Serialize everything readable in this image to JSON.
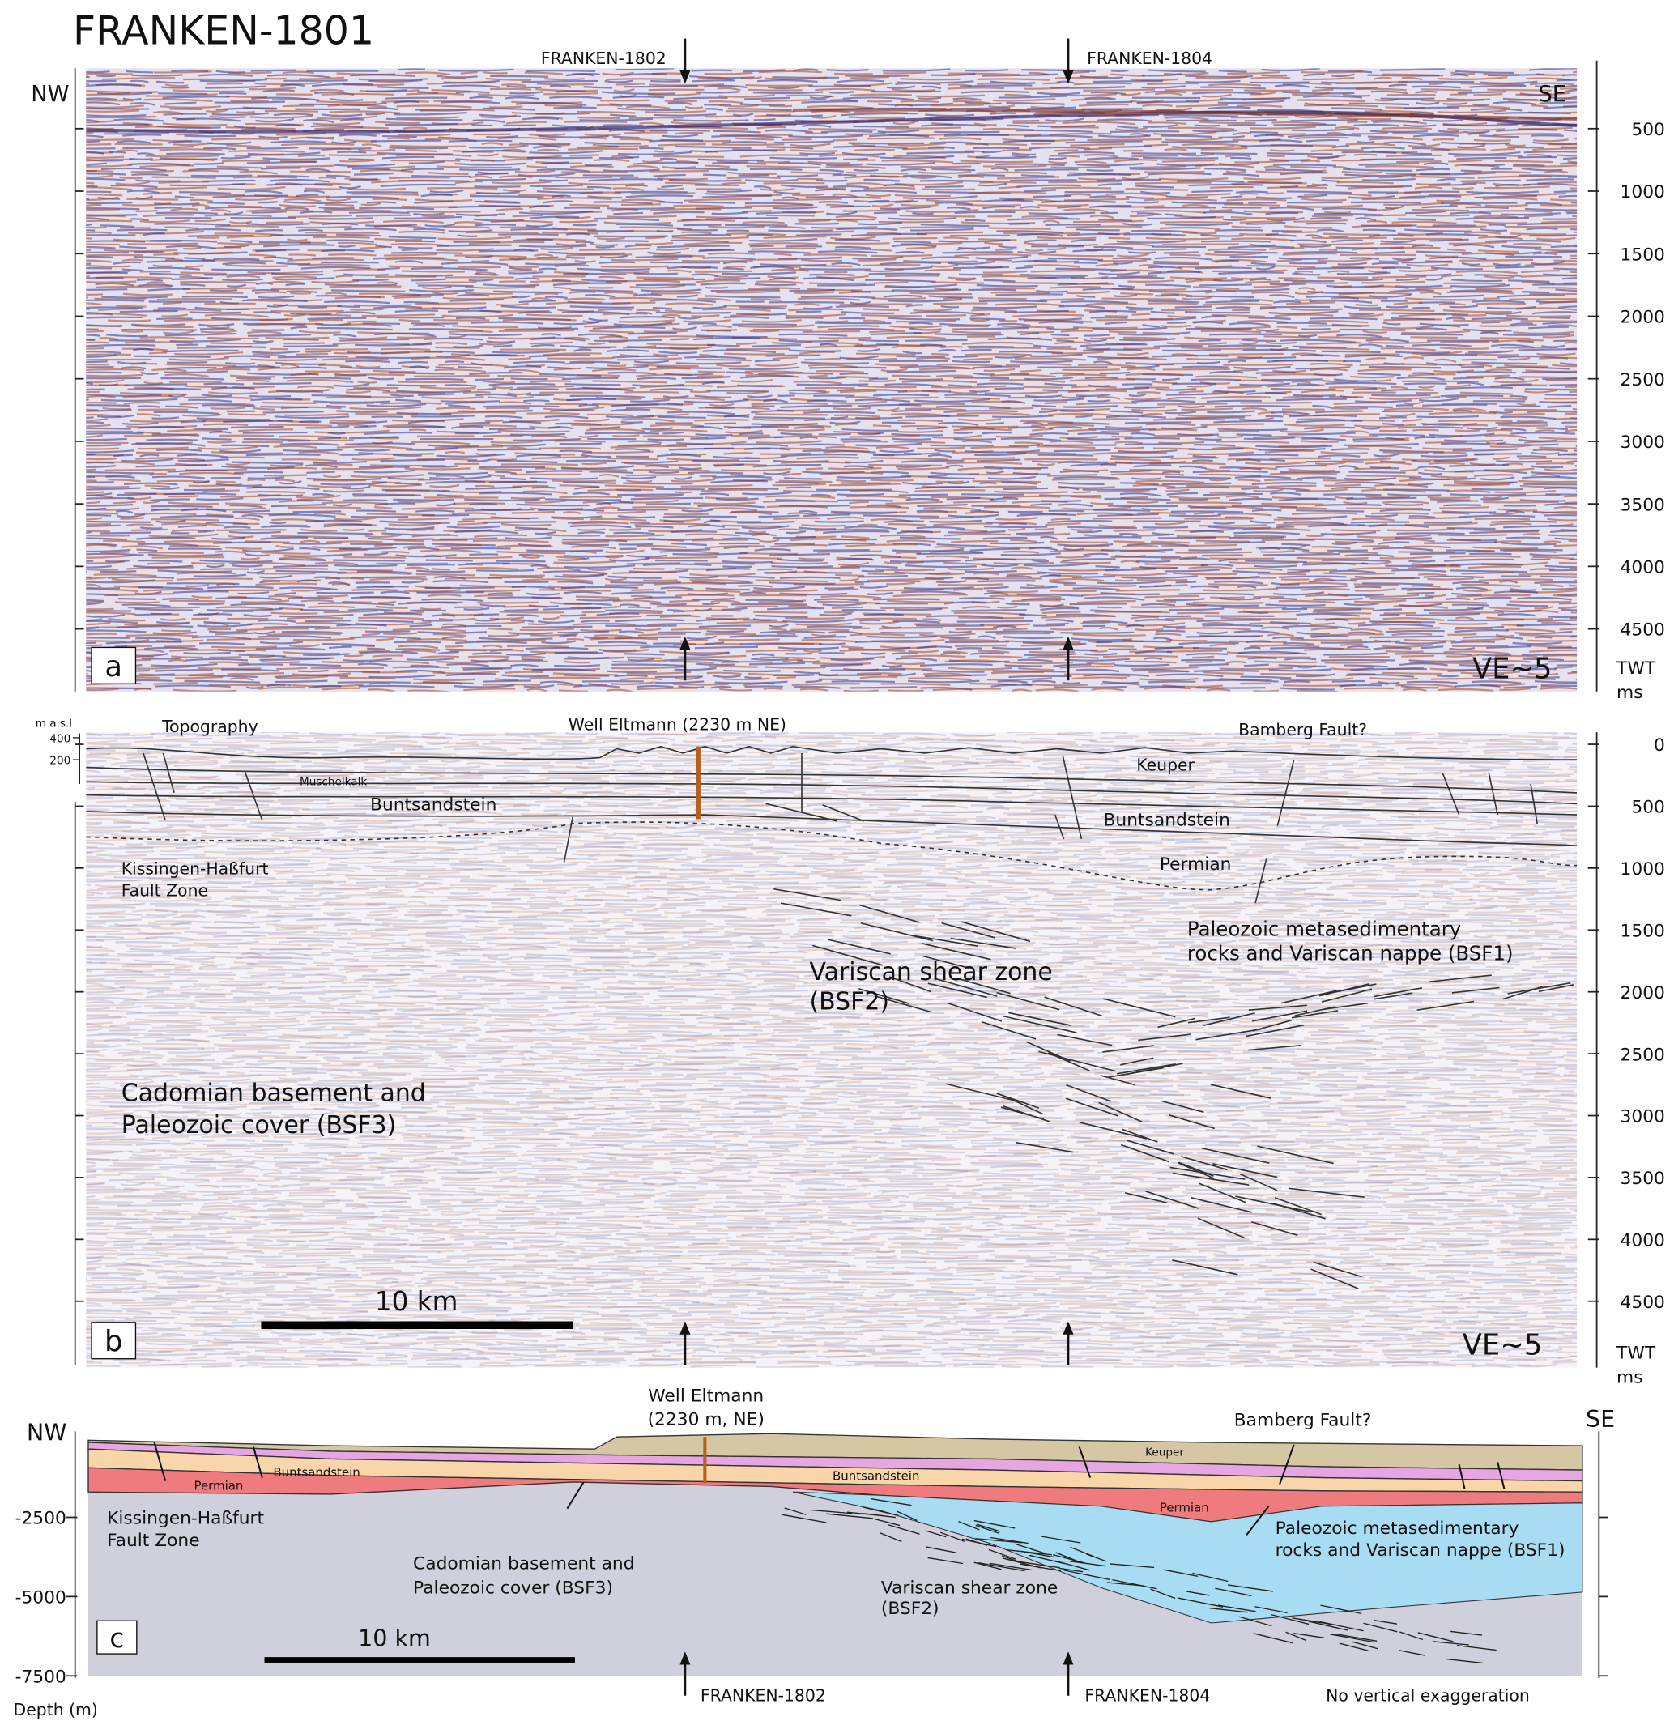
{
  "title": "FRANKEN-1801",
  "panel_a": {
    "letter": "a",
    "well_labels": [
      "FRANKEN-1802",
      "FRANKEN-1804"
    ],
    "left_end": "NW",
    "right_end": "SE",
    "exaggeration": "VE~5",
    "axis": {
      "ylim": [
        0,
        5000
      ],
      "yticks": [
        500,
        1000,
        1500,
        2000,
        2500,
        3000,
        3500,
        4000,
        4500
      ],
      "unit": [
        "TWT",
        "ms"
      ]
    }
  },
  "panel_b": {
    "letter": "b",
    "topo_axis": {
      "title": "m a.s.l",
      "ylim": [
        0,
        400
      ],
      "ticks": [
        400,
        200
      ]
    },
    "topography": "Topography",
    "well": "Well Eltmann (2230 m NE)",
    "fault": "Bamberg Fault?",
    "units": {
      "keuper": "Keuper",
      "muschelkalk": "Muschelkalk",
      "buntsandstein": [
        "Buntsandstein",
        "Buntsandstein"
      ],
      "permian": "Permian",
      "fault_zone": [
        "Kissingen-Haßfurt",
        "Fault Zone"
      ],
      "bsf1": [
        "Paleozoic metasedimentary",
        "rocks and Variscan nappe (BSF1)"
      ],
      "bsf2": [
        "Variscan shear zone",
        "(BSF2)"
      ],
      "bsf3": [
        "Cadomian basement and",
        "Paleozoic cover (BSF3)"
      ]
    },
    "scale_bar": "10 km",
    "exaggeration": "VE~5",
    "axis": {
      "ylim": [
        0,
        5000
      ],
      "yticks": [
        0,
        500,
        1000,
        1500,
        2000,
        2500,
        3000,
        3500,
        4000,
        4500
      ],
      "unit": [
        "TWT",
        "ms"
      ]
    }
  },
  "panel_c": {
    "letter": "c",
    "well": [
      "Well Eltmann",
      "(2230 m, NE)"
    ],
    "fault": "Bamberg Fault?",
    "left_end": "NW",
    "right_end": "SE",
    "units": {
      "keuper": "Keuper",
      "buntsandstein": [
        "Buntsandstein",
        "Buntsandstein"
      ],
      "permian": [
        "Permian",
        "Permian"
      ],
      "fault_zone": [
        "Kissingen-Haßfurt",
        "Fault Zone"
      ],
      "bsf3": [
        "Cadomian basement and",
        "Paleozoic cover (BSF3)"
      ],
      "bsf2": [
        "Variscan shear zone",
        "(BSF2)"
      ],
      "bsf1": [
        "Paleozoic metasedimentary",
        "rocks and Variscan nappe (BSF1)"
      ]
    },
    "scale_bar": "10 km",
    "well_labels": [
      "FRANKEN-1802",
      "FRANKEN-1804"
    ],
    "note": "No vertical exaggeration",
    "axis": {
      "title": "Depth (m)",
      "ylim": [
        0,
        -7500
      ],
      "yticks": [
        -2500,
        -5000,
        -7500
      ]
    }
  }
}
